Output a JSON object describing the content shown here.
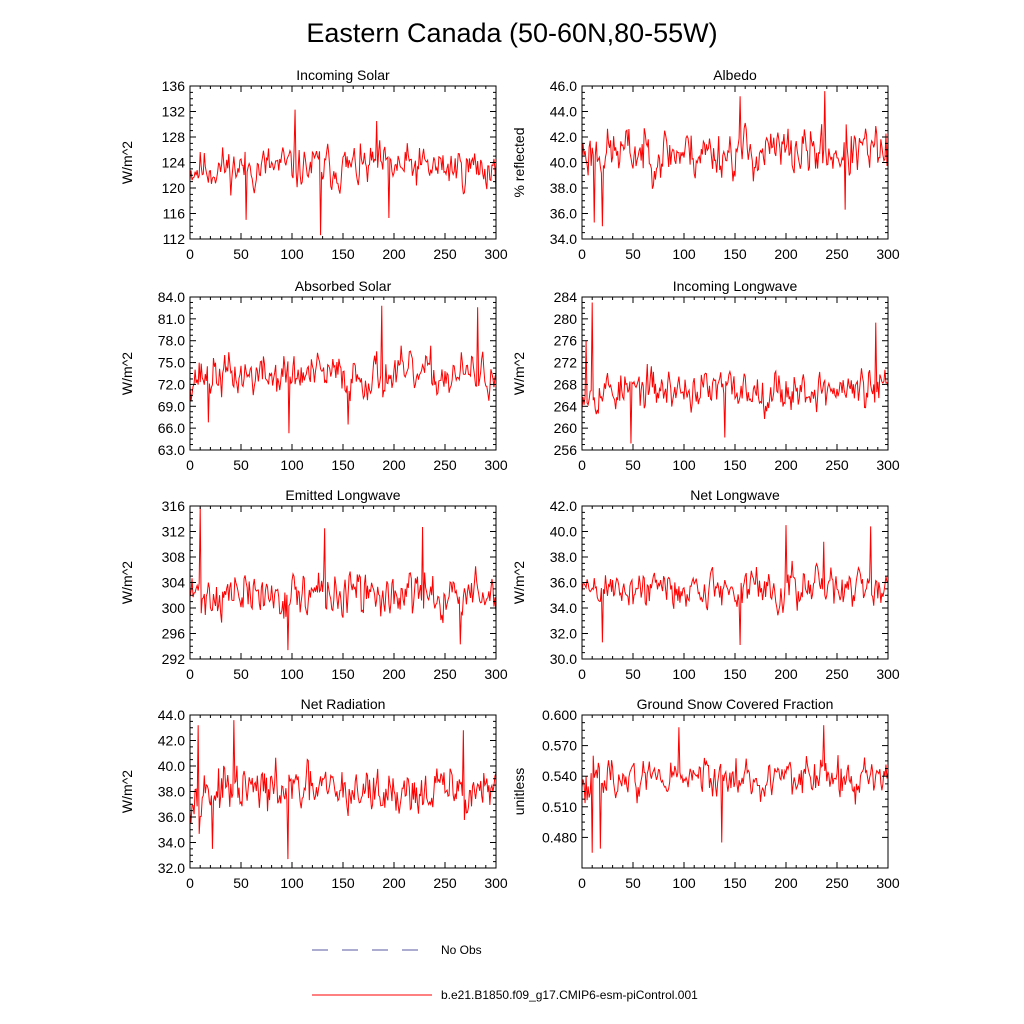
{
  "figure_title": "Eastern Canada (50-60N,80-55W)",
  "colors": {
    "series": "#ff0000",
    "obs": "#5a5aa0",
    "axis": "#000000"
  },
  "legend": {
    "obs_label": "No Obs",
    "model_label": "b.e21.B1850.f09_g17.CMIP6-esm-piControl.001"
  },
  "chart_data": [
    {
      "type": "line",
      "title": "Incoming Solar",
      "ylabel": "W/m^2",
      "xlim": [
        0,
        300
      ],
      "ylim": [
        112,
        136
      ],
      "xticks": [
        0,
        50,
        100,
        150,
        200,
        250,
        300
      ],
      "yticks": [
        112,
        116,
        120,
        124,
        128,
        132,
        136
      ],
      "ytick_decimals": 0,
      "series": [
        {
          "name": "b.e21.B1850.f09_g17.CMIP6-esm-piControl.001",
          "mean": 123.2,
          "amp": 3.4,
          "seed": 11,
          "spikes": [
            [
              103,
              132.3
            ],
            [
              128,
              112.6
            ],
            [
              55,
              115.0
            ],
            [
              195,
              115.3
            ],
            [
              183,
              130.5
            ]
          ]
        }
      ]
    },
    {
      "type": "line",
      "title": "Albedo",
      "ylabel": "% reflected",
      "xlim": [
        0,
        300
      ],
      "ylim": [
        34.0,
        46.0
      ],
      "xticks": [
        0,
        50,
        100,
        150,
        200,
        250,
        300
      ],
      "yticks": [
        34.0,
        36.0,
        38.0,
        40.0,
        42.0,
        44.0,
        46.0
      ],
      "ytick_decimals": 1,
      "series": [
        {
          "name": "b.e21.B1850.f09_g17.CMIP6-esm-piControl.001",
          "mean": 40.8,
          "amp": 2.0,
          "seed": 23,
          "spikes": [
            [
              238,
              45.6
            ],
            [
              155,
              45.2
            ],
            [
              12,
              35.3
            ],
            [
              20,
              35.0
            ],
            [
              258,
              36.3
            ]
          ]
        }
      ]
    },
    {
      "type": "line",
      "title": "Absorbed Solar",
      "ylabel": "W/m^2",
      "xlim": [
        0,
        300
      ],
      "ylim": [
        63.0,
        84.0
      ],
      "xticks": [
        0,
        50,
        100,
        150,
        200,
        250,
        300
      ],
      "yticks": [
        63.0,
        66.0,
        69.0,
        72.0,
        75.0,
        78.0,
        81.0,
        84.0
      ],
      "ytick_decimals": 1,
      "series": [
        {
          "name": "b.e21.B1850.f09_g17.CMIP6-esm-piControl.001",
          "mean": 73.2,
          "amp": 3.0,
          "seed": 37,
          "spikes": [
            [
              188,
              82.8
            ],
            [
              282,
              82.6
            ],
            [
              97,
              65.3
            ],
            [
              155,
              66.5
            ],
            [
              18,
              66.8
            ]
          ]
        }
      ]
    },
    {
      "type": "line",
      "title": "Incoming Longwave",
      "ylabel": "W/m^2",
      "xlim": [
        0,
        300
      ],
      "ylim": [
        256,
        284
      ],
      "xticks": [
        0,
        50,
        100,
        150,
        200,
        250,
        300
      ],
      "yticks": [
        256,
        260,
        264,
        268,
        272,
        276,
        280,
        284
      ],
      "ytick_decimals": 0,
      "series": [
        {
          "name": "b.e21.B1850.f09_g17.CMIP6-esm-piControl.001",
          "mean": 267.0,
          "amp": 3.8,
          "seed": 53,
          "spikes": [
            [
              10,
              283.0
            ],
            [
              288,
              279.3
            ],
            [
              48,
              257.2
            ],
            [
              140,
              258.3
            ],
            [
              4,
              276.0
            ]
          ]
        }
      ]
    },
    {
      "type": "line",
      "title": "Emitted Longwave",
      "ylabel": "W/m^2",
      "xlim": [
        0,
        300
      ],
      "ylim": [
        292,
        316
      ],
      "xticks": [
        0,
        50,
        100,
        150,
        200,
        250,
        300
      ],
      "yticks": [
        292,
        296,
        300,
        304,
        308,
        312,
        316
      ],
      "ytick_decimals": 0,
      "series": [
        {
          "name": "b.e21.B1850.f09_g17.CMIP6-esm-piControl.001",
          "mean": 302.0,
          "amp": 3.6,
          "seed": 71,
          "spikes": [
            [
              10,
              315.8
            ],
            [
              96,
              293.4
            ],
            [
              265,
              294.3
            ],
            [
              228,
              312.7
            ],
            [
              132,
              312.5
            ]
          ]
        }
      ]
    },
    {
      "type": "line",
      "title": "Net Longwave",
      "ylabel": "W/m^2",
      "xlim": [
        0,
        300
      ],
      "ylim": [
        30.0,
        42.0
      ],
      "xticks": [
        0,
        50,
        100,
        150,
        200,
        250,
        300
      ],
      "yticks": [
        30.0,
        32.0,
        34.0,
        36.0,
        38.0,
        40.0,
        42.0
      ],
      "ytick_decimals": 1,
      "series": [
        {
          "name": "b.e21.B1850.f09_g17.CMIP6-esm-piControl.001",
          "mean": 35.5,
          "amp": 1.6,
          "seed": 89,
          "spikes": [
            [
              283,
              40.4
            ],
            [
              200,
              40.5
            ],
            [
              155,
              31.1
            ],
            [
              20,
              31.3
            ],
            [
              237,
              39.2
            ]
          ]
        }
      ]
    },
    {
      "type": "line",
      "title": "Net Radiation",
      "ylabel": "W/m^2",
      "xlim": [
        0,
        300
      ],
      "ylim": [
        32.0,
        44.0
      ],
      "xticks": [
        0,
        50,
        100,
        150,
        200,
        250,
        300
      ],
      "yticks": [
        32.0,
        34.0,
        36.0,
        38.0,
        40.0,
        42.0,
        44.0
      ],
      "ytick_decimals": 1,
      "series": [
        {
          "name": "b.e21.B1850.f09_g17.CMIP6-esm-piControl.001",
          "mean": 38.0,
          "amp": 1.9,
          "seed": 97,
          "spikes": [
            [
              43,
              43.6
            ],
            [
              96,
              32.7
            ],
            [
              22,
              33.5
            ],
            [
              268,
              42.8
            ],
            [
              8,
              43.2
            ]
          ]
        }
      ]
    },
    {
      "type": "line",
      "title": "Ground Snow Covered Fraction",
      "ylabel": "unitless",
      "xlim": [
        0,
        300
      ],
      "ylim": [
        0.45,
        0.6
      ],
      "xticks": [
        0,
        50,
        100,
        150,
        200,
        250,
        300
      ],
      "yticks": [
        0.48,
        0.51,
        0.54,
        0.57,
        0.6
      ],
      "ytick_decimals": 3,
      "series": [
        {
          "name": "b.e21.B1850.f09_g17.CMIP6-esm-piControl.001",
          "mean": 0.538,
          "amp": 0.02,
          "seed": 113,
          "spikes": [
            [
              10,
              0.465
            ],
            [
              237,
              0.59
            ],
            [
              95,
              0.588
            ],
            [
              137,
              0.475
            ],
            [
              18,
              0.469
            ]
          ]
        }
      ]
    }
  ]
}
